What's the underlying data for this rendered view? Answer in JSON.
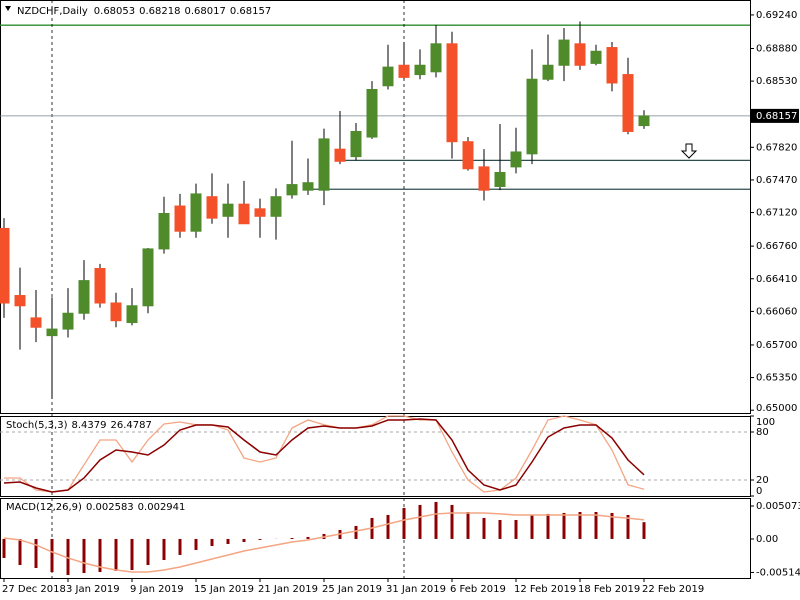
{
  "chart_data": [
    {
      "type": "candlestick",
      "title": "NZDCHF,Daily",
      "categories": [
        "27 Dec 2018",
        null,
        null,
        null,
        "3 Jan 2019",
        null,
        null,
        null,
        "9 Jan 2019",
        null,
        null,
        null,
        "15 Jan 2019",
        null,
        null,
        null,
        "21 Jan 2019",
        null,
        null,
        null,
        "25 Jan 2019",
        null,
        null,
        null,
        "31 Jan 2019",
        null,
        null,
        null,
        "6 Feb 2019",
        null,
        null,
        null,
        "12 Feb 2019",
        null,
        null,
        null,
        "18 Feb 2019",
        null,
        null,
        null,
        "22 Feb 2019"
      ],
      "open": [
        0.6695,
        0.6623,
        0.6599,
        0.658,
        0.6587,
        0.6604,
        0.6652,
        0.6615,
        0.6594,
        0.6612,
        0.6673,
        0.6719,
        0.6692,
        0.6729,
        0.6708,
        0.6721,
        0.6716,
        0.6708,
        0.6731,
        0.6736,
        0.6736,
        0.678,
        0.6772,
        0.6793,
        0.6848,
        0.687,
        0.686,
        0.6863,
        0.6893,
        0.6788,
        0.6761,
        0.674,
        0.6761,
        0.6775,
        0.6855,
        0.687,
        0.6893,
        0.6872,
        0.6889,
        0.686,
        0.68053
      ],
      "high": [
        0.6706,
        0.6653,
        0.6629,
        0.6621,
        0.6631,
        0.6661,
        0.6657,
        0.6626,
        0.6631,
        0.6674,
        0.6729,
        0.6732,
        0.6743,
        0.6754,
        0.6743,
        0.6746,
        0.6727,
        0.6738,
        0.6789,
        0.677,
        0.6802,
        0.6821,
        0.6808,
        0.6853,
        0.6892,
        0.6895,
        0.6887,
        0.6913,
        0.6906,
        0.6793,
        0.678,
        0.6807,
        0.6803,
        0.6887,
        0.6903,
        0.691,
        0.6917,
        0.6892,
        0.6895,
        0.6878,
        0.68218
      ],
      "low": [
        0.6599,
        0.6565,
        0.6573,
        0.6512,
        0.6578,
        0.6597,
        0.661,
        0.6589,
        0.6591,
        0.6604,
        0.6668,
        0.6685,
        0.6685,
        0.67,
        0.6685,
        0.67,
        0.6685,
        0.6683,
        0.6727,
        0.6731,
        0.672,
        0.6764,
        0.6768,
        0.6791,
        0.6844,
        0.6855,
        0.6855,
        0.6857,
        0.677,
        0.6757,
        0.6725,
        0.6736,
        0.6754,
        0.6764,
        0.6853,
        0.6853,
        0.6865,
        0.687,
        0.6842,
        0.6796,
        0.68017
      ],
      "close": [
        0.6615,
        0.6612,
        0.6589,
        0.6587,
        0.6604,
        0.6639,
        0.6615,
        0.6596,
        0.6612,
        0.6673,
        0.6711,
        0.6692,
        0.6732,
        0.6706,
        0.6721,
        0.67,
        0.6708,
        0.6729,
        0.6742,
        0.6744,
        0.6791,
        0.6767,
        0.6799,
        0.6844,
        0.6868,
        0.6857,
        0.687,
        0.6893,
        0.6788,
        0.6759,
        0.6736,
        0.6755,
        0.6777,
        0.6855,
        0.687,
        0.6897,
        0.687,
        0.6885,
        0.6851,
        0.6799,
        0.68157
      ],
      "up_color": "#4f8a2b",
      "down_color": "#f4502a",
      "levels": [
        {
          "value": 0.6913,
          "color": "#2e8b2e"
        },
        {
          "value": 0.6768,
          "color": "#2f4f4f"
        },
        {
          "value": 0.6737,
          "color": "#2f4f4f"
        }
      ],
      "ylim": [
        0.6497,
        0.694
      ],
      "yticks": [
        {
          "value": 0.6924,
          "label": "0.69240"
        },
        {
          "value": 0.6888,
          "label": "0.68880"
        },
        {
          "value": 0.6853,
          "label": "0.68530"
        },
        {
          "value": 0.6782,
          "label": "0.67820"
        },
        {
          "value": 0.6747,
          "label": "0.67470"
        },
        {
          "value": 0.6712,
          "label": "0.67120"
        },
        {
          "value": 0.6676,
          "label": "0.66760"
        },
        {
          "value": 0.6641,
          "label": "0.66410"
        },
        {
          "value": 0.6606,
          "label": "0.66060"
        },
        {
          "value": 0.657,
          "label": "0.65700"
        },
        {
          "value": 0.6535,
          "label": "0.65350"
        },
        {
          "value": 0.65,
          "label": "0.65000"
        }
      ]
    },
    {
      "type": "stochastic",
      "title": "Stoch(5,3,3)",
      "k_values": [
        22.5,
        22.5,
        7.5,
        5,
        7.5,
        39,
        70,
        70,
        42.5,
        70,
        90,
        92.5,
        89,
        89,
        82.5,
        47.5,
        42.5,
        47.5,
        85,
        95,
        89,
        85,
        85,
        89,
        100,
        100,
        95,
        95,
        55,
        20,
        5,
        7.5,
        22.5,
        57.5,
        95,
        100,
        95,
        89,
        57.5,
        14,
        8.4379
      ],
      "d_values": [
        16.25,
        17.5,
        10,
        5,
        7.5,
        22.5,
        45,
        57.5,
        55,
        51.25,
        63.75,
        82.5,
        88.75,
        88.75,
        86.25,
        70,
        55,
        51.25,
        70,
        85,
        87.5,
        85,
        85,
        87.5,
        95,
        95,
        96.25,
        95,
        70,
        32.5,
        13.75,
        7.5,
        13.75,
        42.5,
        73.75,
        85,
        88.75,
        88.75,
        72.5,
        45,
        26.4787
      ],
      "k_color": "#f4a582",
      "d_color": "#8b0000",
      "ylim": [
        0,
        100
      ],
      "yticks": [
        100,
        80,
        20,
        0
      ]
    },
    {
      "type": "macd",
      "title": "MACD(12,26,9)",
      "values": [
        -0.00292,
        -0.004,
        -0.00446,
        -0.00508,
        -0.00554,
        -0.00523,
        -0.00508,
        -0.00492,
        -0.00477,
        -0.004,
        -0.00323,
        -0.00246,
        -0.00169,
        -0.00108,
        -0.00077,
        -0.00046,
        -0.00015,
        2e-05,
        0.00015,
        0.00031,
        0.00077,
        0.00138,
        0.002,
        0.00323,
        0.00369,
        0.00477,
        0.00523,
        0.00569,
        0.00523,
        0.00415,
        0.00323,
        0.00292,
        0.00292,
        0.00369,
        0.00385,
        0.004,
        0.00415,
        0.00415,
        0.004,
        0.00369,
        0.002583
      ],
      "signal": [
        0.00015,
        -0.00015,
        -0.00092,
        -0.002,
        -0.00292,
        -0.00369,
        -0.00431,
        -0.00477,
        -0.00508,
        -0.00508,
        -0.00477,
        -0.00431,
        -0.00369,
        -0.00308,
        -0.00246,
        -0.00185,
        -0.00138,
        -0.00092,
        -0.00046,
        -0.00015,
        0.00031,
        0.00077,
        0.00123,
        0.00169,
        0.00231,
        0.00292,
        0.00338,
        0.00385,
        0.004,
        0.004,
        0.004,
        0.00385,
        0.00369,
        0.00369,
        0.00369,
        0.00369,
        0.00369,
        0.00369,
        0.0034,
        0.0032,
        0.002941
      ],
      "color": "#8b0000",
      "signal_color": "#f4a582",
      "ylim": [
        -0.006,
        0.0063
      ],
      "yticks": [
        0.005073,
        {
          "value": 0,
          "label": "0.00"
        },
        -0.005143
      ]
    }
  ]
}
